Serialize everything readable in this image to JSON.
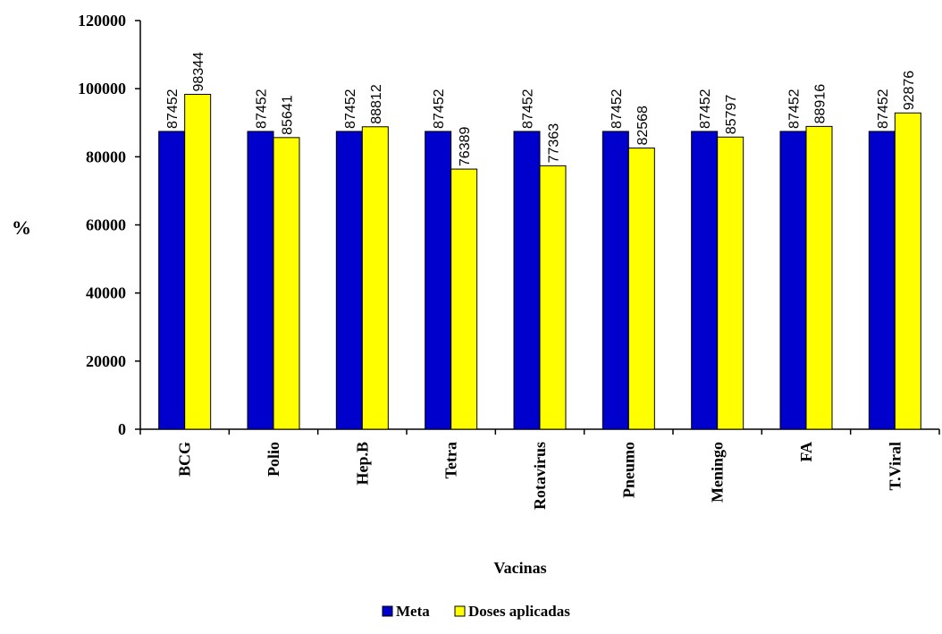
{
  "chart_data": {
    "type": "bar",
    "title": "",
    "xlabel": "Vacinas",
    "ylabel": "%",
    "ylim": [
      0,
      120000
    ],
    "yticks": [
      0,
      20000,
      40000,
      60000,
      80000,
      100000,
      120000
    ],
    "categories": [
      "BCG",
      "Polio",
      "Hep.B",
      "Tetra",
      "Rotavirus",
      "Pneumo",
      "Meningo",
      "FA",
      "T.Viral"
    ],
    "series": [
      {
        "name": "Meta",
        "color": "#0000cc",
        "values": [
          87452,
          87452,
          87452,
          87452,
          87452,
          87452,
          87452,
          87452,
          87452
        ]
      },
      {
        "name": "Doses aplicadas",
        "color": "#ffff00",
        "values": [
          98344,
          85641,
          88812,
          76389,
          77363,
          82568,
          85797,
          88916,
          92876
        ]
      }
    ],
    "data_labels": true,
    "grid": false,
    "legend": "bottom"
  }
}
